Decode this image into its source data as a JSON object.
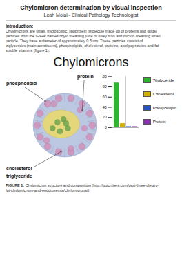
{
  "title": "Chylomicron determination by visual inspection",
  "subtitle": "Leah Molai - Clinical Pathology Technologist",
  "intro_header": "Introduction:",
  "intro_text_lines": [
    "Chylomicrons are small, microscopic, lipoprotein (molecule made up of proteins and lipids)",
    "particles from the Greek names chylo meaning juice or milky fluid and micron meaning small",
    "particle. They have a diameter of approximately 0.5 um. These particles consist of",
    "triglycerides (main constituent), phospholipids, cholesterol, proteins, apolipoproteins and fat-",
    "soluble vitamins (figure 1)."
  ],
  "diagram_title": "Chylomicrons",
  "diagram_labels": [
    "phospholipid",
    "protein",
    "cholesterol",
    "triglyceride"
  ],
  "figure_caption_bold": "FIGURE 1:",
  "figure_caption_lines": [
    "Chylomicron structure and composition (http://gutcritters.com/part-three-dietary-",
    "fat-chylomicrons-and-endotoxemia/chylomicrons/)"
  ],
  "chart_data": {
    "type": "bar",
    "categories": [
      "Triglyceride",
      "Cholesterol",
      "Phospholipid",
      "Protein"
    ],
    "values": [
      88,
      8,
      2,
      2
    ],
    "colors": [
      "#2db52d",
      "#d4b000",
      "#2255cc",
      "#8833aa"
    ],
    "ylim": [
      0,
      100
    ],
    "yticks": [
      0,
      20,
      40,
      60,
      80,
      100
    ],
    "grid": false,
    "legend": "right",
    "tick_labels": "y"
  }
}
